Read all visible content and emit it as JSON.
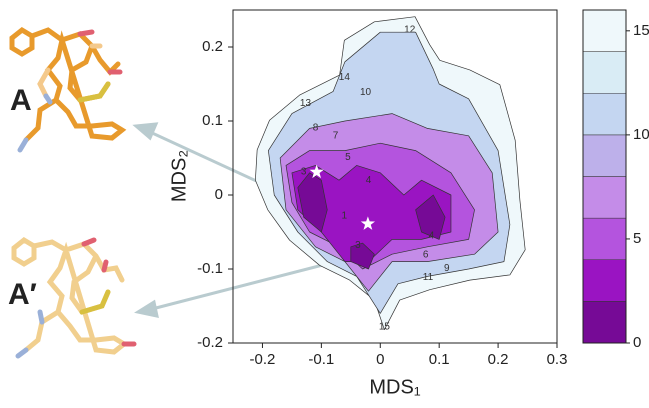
{
  "chart_data": {
    "type": "contour",
    "x_label": "MDS₁",
    "y_label": "MDS₂",
    "xlim": [
      -0.25,
      0.3
    ],
    "xticks": [
      -0.2,
      -0.1,
      0.0,
      0.1,
      0.2,
      0.3
    ],
    "ylim": [
      -0.2,
      0.25
    ],
    "yticks": [
      -0.2,
      -0.1,
      0.0,
      0.1,
      0.2
    ],
    "colorbar": {
      "lim": [
        0,
        16
      ],
      "ticks": [
        0,
        5,
        10,
        15
      ],
      "levels": [
        0,
        2,
        4,
        6,
        8,
        10,
        12,
        14,
        16
      ],
      "colors": [
        "#760a96",
        "#9a14c2",
        "#b454de",
        "#c48ce8",
        "#bdb0ea",
        "#c4d6f1",
        "#d9ecf5",
        "#eff8fb"
      ]
    },
    "contours": [
      {
        "level": 16,
        "x": [
          -0.209,
          -0.188,
          -0.137,
          -0.069,
          -0.061,
          -0.01,
          0.059,
          0.084,
          0.101,
          0.152,
          0.203,
          0.229,
          0.237,
          0.246,
          0.22,
          0.152,
          0.084,
          0.033,
          0.007,
          -0.01,
          -0.052,
          -0.103,
          -0.154,
          -0.191,
          -0.212
        ],
        "y": [
          0.061,
          0.101,
          0.135,
          0.162,
          0.209,
          0.234,
          0.241,
          0.203,
          0.182,
          0.169,
          0.149,
          0.074,
          -0.007,
          -0.074,
          -0.108,
          -0.115,
          -0.128,
          -0.142,
          -0.182,
          -0.142,
          -0.115,
          -0.095,
          -0.061,
          -0.02,
          0.02
        ]
      },
      {
        "level": 12,
        "x": [
          -0.19,
          -0.15,
          -0.08,
          -0.06,
          0.0,
          0.06,
          0.09,
          0.1,
          0.15,
          0.2,
          0.22,
          0.21,
          0.15,
          0.08,
          0.03,
          0.0,
          -0.04,
          -0.09,
          -0.14,
          -0.18
        ],
        "y": [
          0.06,
          0.11,
          0.14,
          0.18,
          0.22,
          0.22,
          0.17,
          0.15,
          0.13,
          0.06,
          -0.04,
          -0.09,
          -0.1,
          -0.11,
          -0.12,
          -0.16,
          -0.11,
          -0.09,
          -0.05,
          0.0
        ]
      },
      {
        "level": 8,
        "x": [
          -0.17,
          -0.12,
          -0.06,
          0.02,
          0.08,
          0.15,
          0.19,
          0.2,
          0.16,
          0.08,
          0.02,
          -0.02,
          -0.06,
          -0.11,
          -0.16
        ],
        "y": [
          0.05,
          0.09,
          0.1,
          0.11,
          0.09,
          0.08,
          0.03,
          -0.05,
          -0.08,
          -0.09,
          -0.09,
          -0.13,
          -0.09,
          -0.07,
          -0.02
        ]
      },
      {
        "level": 6,
        "x": [
          -0.16,
          -0.12,
          -0.06,
          0.0,
          0.06,
          0.12,
          0.16,
          0.15,
          0.08,
          0.02,
          -0.03,
          -0.07,
          -0.12,
          -0.15
        ],
        "y": [
          0.04,
          0.06,
          0.06,
          0.07,
          0.06,
          0.03,
          -0.02,
          -0.06,
          -0.07,
          -0.08,
          -0.1,
          -0.07,
          -0.05,
          -0.01
        ]
      },
      {
        "level": 4,
        "x": [
          -0.15,
          -0.11,
          -0.07,
          -0.04,
          0.0,
          0.04,
          0.07,
          0.12,
          0.12,
          0.07,
          0.02,
          -0.02,
          -0.06,
          -0.1,
          -0.14
        ],
        "y": [
          0.03,
          0.04,
          0.02,
          0.04,
          0.03,
          0.0,
          0.02,
          0.0,
          -0.05,
          -0.06,
          -0.06,
          -0.09,
          -0.09,
          -0.05,
          -0.02
        ]
      },
      {
        "level": 2,
        "x": [
          -0.14,
          -0.12,
          -0.1,
          -0.09,
          -0.1,
          -0.13
        ],
        "y": [
          0.01,
          0.03,
          0.02,
          -0.02,
          -0.05,
          -0.03
        ]
      },
      {
        "level": 2,
        "x": [
          -0.05,
          -0.03,
          -0.01,
          -0.02,
          -0.05
        ],
        "y": [
          -0.07,
          -0.065,
          -0.08,
          -0.1,
          -0.09
        ]
      },
      {
        "level": 2,
        "x": [
          0.06,
          0.09,
          0.11,
          0.1,
          0.07
        ],
        "y": [
          -0.02,
          0.0,
          -0.03,
          -0.06,
          -0.05
        ]
      }
    ],
    "contour_labels": [
      {
        "text": "12",
        "x": 0.05,
        "y": 0.223
      },
      {
        "text": "14",
        "x": -0.061,
        "y": 0.159
      },
      {
        "text": "13",
        "x": -0.127,
        "y": 0.124
      },
      {
        "text": "10",
        "x": -0.025,
        "y": 0.139
      },
      {
        "text": "8",
        "x": -0.11,
        "y": 0.091
      },
      {
        "text": "7",
        "x": -0.076,
        "y": 0.08
      },
      {
        "text": "5",
        "x": -0.055,
        "y": 0.051
      },
      {
        "text": "3",
        "x": -0.13,
        "y": 0.031
      },
      {
        "text": "4",
        "x": -0.02,
        "y": 0.02
      },
      {
        "text": "1",
        "x": -0.061,
        "y": -0.028
      },
      {
        "text": "3",
        "x": -0.038,
        "y": -0.068
      },
      {
        "text": "4",
        "x": 0.087,
        "y": -0.055
      },
      {
        "text": "6",
        "x": 0.077,
        "y": -0.081
      },
      {
        "text": "9",
        "x": 0.113,
        "y": -0.099
      },
      {
        "text": "11",
        "x": 0.081,
        "y": -0.111
      },
      {
        "text": "15",
        "x": 0.007,
        "y": -0.178
      }
    ],
    "minima": {
      "x": [
        -0.108,
        -0.021
      ],
      "y": [
        0.031,
        -0.039
      ]
    },
    "panel_labels": [
      "A",
      "A′"
    ]
  }
}
